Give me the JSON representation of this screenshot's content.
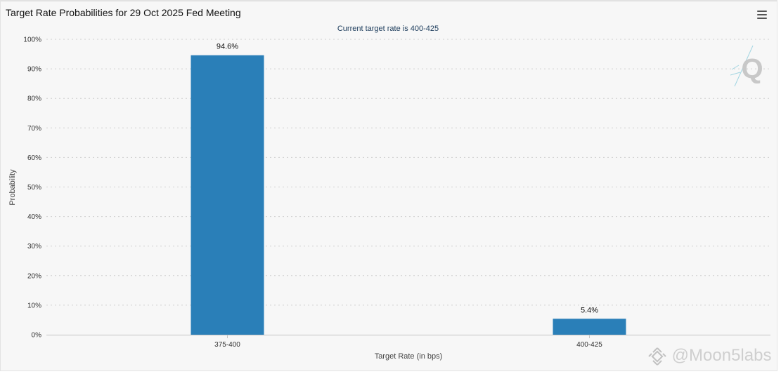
{
  "header": {
    "title": "Target Rate Probabilities for 29 Oct 2025 Fed Meeting"
  },
  "menu": {
    "icon": "hamburger-menu-icon"
  },
  "logo": {
    "icon": "q-logo-icon",
    "letter": "Q"
  },
  "watermark": {
    "text": "@Moon5labs"
  },
  "chart_data": {
    "type": "bar",
    "title": "Target Rate Probabilities for 29 Oct 2025 Fed Meeting",
    "subtitle": "Current target rate is 400-425",
    "xlabel": "Target Rate (in bps)",
    "ylabel": "Probability",
    "categories": [
      "375-400",
      "400-425"
    ],
    "values": [
      94.6,
      5.4
    ],
    "data_labels": [
      "94.6%",
      "5.4%"
    ],
    "ylim": [
      0,
      100
    ],
    "yticks": [
      0,
      10,
      20,
      30,
      40,
      50,
      60,
      70,
      80,
      90,
      100
    ],
    "ytick_labels": [
      "0%",
      "10%",
      "20%",
      "30%",
      "40%",
      "50%",
      "60%",
      "70%",
      "80%",
      "90%",
      "100%"
    ],
    "grid": true,
    "bar_color": "#2a7fb8"
  }
}
